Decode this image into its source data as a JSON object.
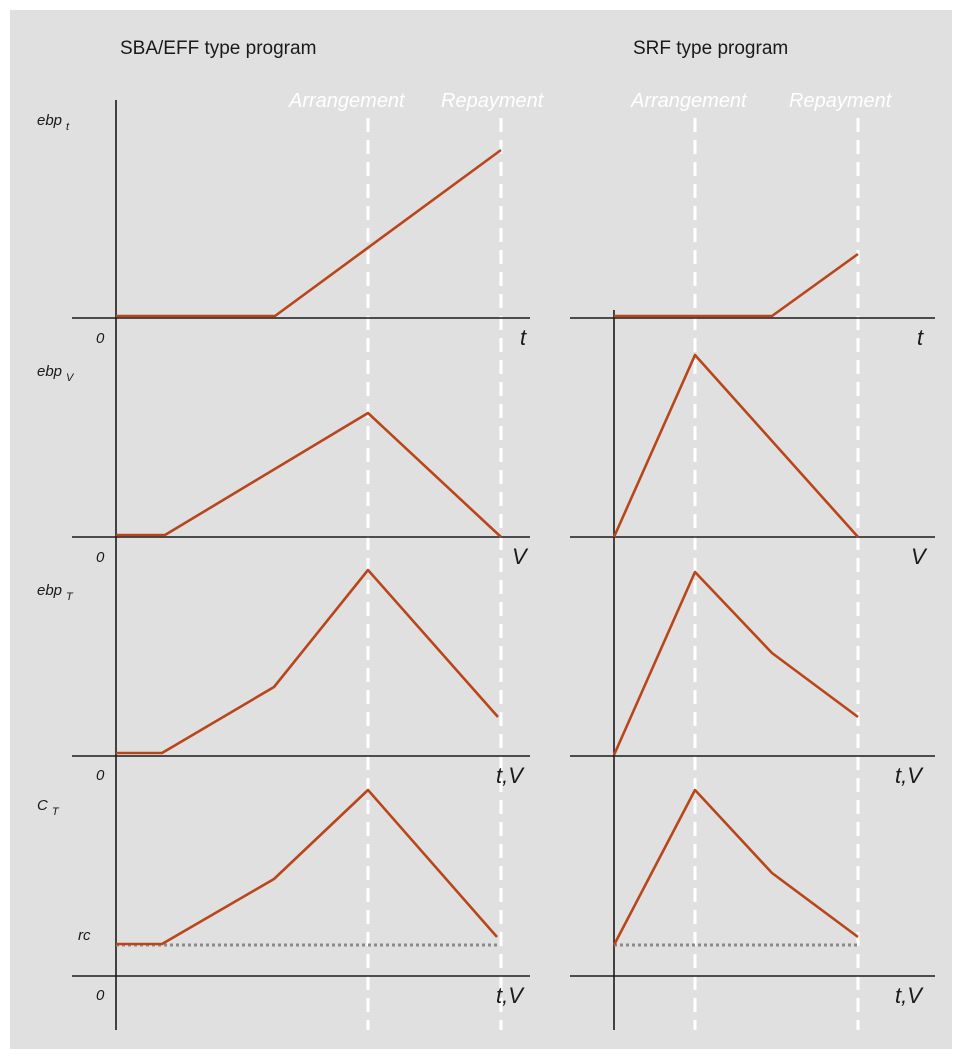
{
  "columns": [
    {
      "title": "SBA/EFF type program",
      "phases": [
        "Arrangement",
        "Repayment"
      ],
      "x_labels": [
        "t",
        "V",
        "t,V",
        "t,V"
      ],
      "zero_labels": [
        "0",
        "0",
        "0",
        "0"
      ]
    },
    {
      "title": "SRF type program",
      "phases": [
        "Arrangement",
        "Repayment"
      ],
      "x_labels": [
        "t",
        "V",
        "t,V",
        "t,V"
      ]
    }
  ],
  "rows": [
    {
      "y_label": "ebp",
      "y_sub": "t"
    },
    {
      "y_label": "ebp",
      "y_sub": "V"
    },
    {
      "y_label": "ebp",
      "y_sub": "T"
    },
    {
      "y_label": "C",
      "y_sub": "T",
      "baseline_label": "rc"
    }
  ],
  "colors": {
    "curve": "#b9461b",
    "phase_line": "#ffffff",
    "baseline": "#8a8a8a",
    "background": "#e0e0e0"
  }
}
